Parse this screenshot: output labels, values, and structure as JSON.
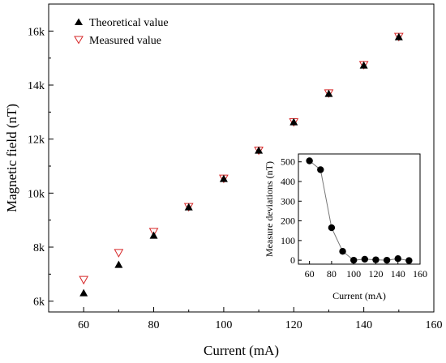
{
  "chart_data": [
    {
      "type": "scatter",
      "xlabel": "Current (mA)",
      "ylabel": "Magnetic field (nT)",
      "xlim": [
        50,
        160
      ],
      "ylim": [
        5600,
        17000
      ],
      "x_ticks": [
        60,
        80,
        100,
        120,
        140,
        160
      ],
      "x_tick_labels": [
        "60",
        "80",
        "100",
        "120",
        "140",
        "160"
      ],
      "y_ticks": [
        6000,
        8000,
        10000,
        12000,
        14000,
        16000
      ],
      "y_tick_labels": [
        "6k",
        "8k",
        "10k",
        "12k",
        "14k",
        "16k"
      ],
      "grid": false,
      "legend_position": "top-left",
      "series": [
        {
          "name": "Theoretical value",
          "marker": "filled-triangle-up",
          "color": "#000000",
          "x": [
            60,
            70,
            80,
            90,
            100,
            110,
            120,
            130,
            140,
            150
          ],
          "y": [
            6300,
            7350,
            8430,
            9480,
            10530,
            11580,
            12630,
            13680,
            14730,
            15780
          ]
        },
        {
          "name": "Measured value",
          "marker": "open-triangle-down",
          "color": "#d62728",
          "x": [
            60,
            70,
            80,
            90,
            100,
            110,
            120,
            130,
            140,
            150
          ],
          "y": [
            6780,
            7780,
            8560,
            9480,
            10530,
            11570,
            12620,
            13690,
            14740,
            15780
          ]
        }
      ]
    },
    {
      "type": "line",
      "xlabel": "Current (mA)",
      "ylabel": "Measure deviations (nT)",
      "xlim": [
        50,
        160
      ],
      "ylim": [
        -20,
        540
      ],
      "x_ticks": [
        60,
        80,
        100,
        120,
        140,
        160
      ],
      "x_tick_labels": [
        "60",
        "80",
        "100",
        "120",
        "140",
        "160"
      ],
      "y_ticks": [
        0,
        100,
        200,
        300,
        400,
        500
      ],
      "y_tick_labels": [
        "0",
        "100",
        "200",
        "300",
        "400",
        "500"
      ],
      "grid": false,
      "series": [
        {
          "marker": "filled-circle",
          "color": "#000000",
          "x": [
            60,
            70,
            80,
            90,
            100,
            110,
            120,
            130,
            140,
            150
          ],
          "y": [
            505,
            460,
            165,
            45,
            0,
            5,
            2,
            0,
            8,
            -2
          ]
        }
      ]
    }
  ]
}
